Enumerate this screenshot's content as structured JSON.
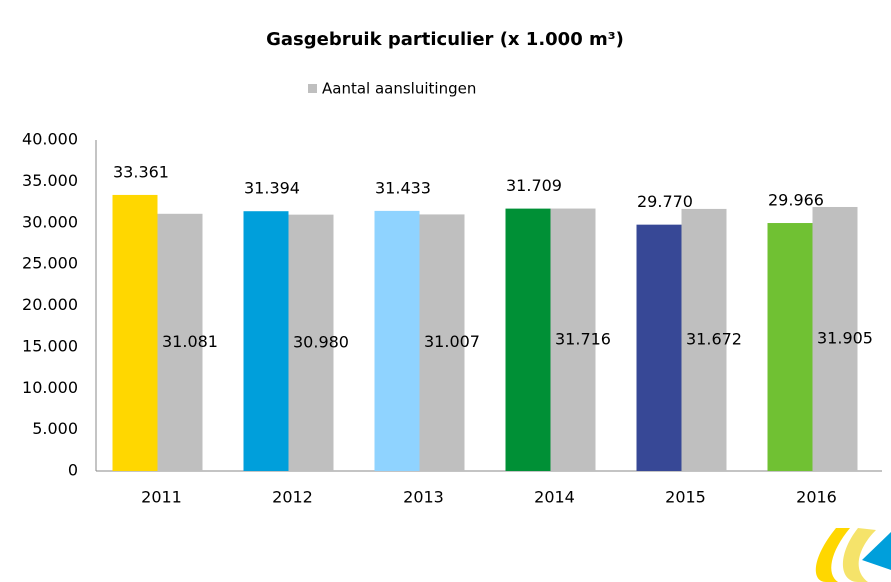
{
  "chart_data": {
    "type": "bar",
    "title": "Gasgebruik particulier (x 1.000 m³)",
    "categories": [
      "2011",
      "2012",
      "2013",
      "2014",
      "2015",
      "2016"
    ],
    "series": [
      {
        "colors": [
          "#ffd700",
          "#009fdb",
          "#8fd3ff",
          "#009036",
          "#374896",
          "#70c133"
        ],
        "values": [
          33361,
          31394,
          31433,
          31709,
          29770,
          29966
        ],
        "value_labels": [
          "33.361",
          "31.394",
          "31.433",
          "31.709",
          "29.770",
          "29.966"
        ]
      },
      {
        "name": "Aantal aansluitingen",
        "color": "#bfbfbf",
        "values": [
          31081,
          30980,
          31007,
          31716,
          31672,
          31905
        ],
        "value_labels": [
          "31.081",
          "30.980",
          "31.007",
          "31.716",
          "31.672",
          "31.905"
        ]
      }
    ],
    "ylim": [
      0,
      40000
    ],
    "yticks": [
      0,
      {
        "value": 5000,
        "label": "5.000"
      },
      {
        "value": 10000,
        "label": "10.000"
      },
      {
        "value": 15000,
        "label": "15.000"
      },
      {
        "value": 20000,
        "label": "20.000"
      },
      {
        "value": 25000,
        "label": "25.000"
      },
      {
        "value": 30000,
        "label": "30.000"
      },
      {
        "value": 35000,
        "label": "35.000"
      },
      {
        "value": 40000,
        "label": "40.000"
      }
    ],
    "grid": false,
    "legend": "top"
  }
}
